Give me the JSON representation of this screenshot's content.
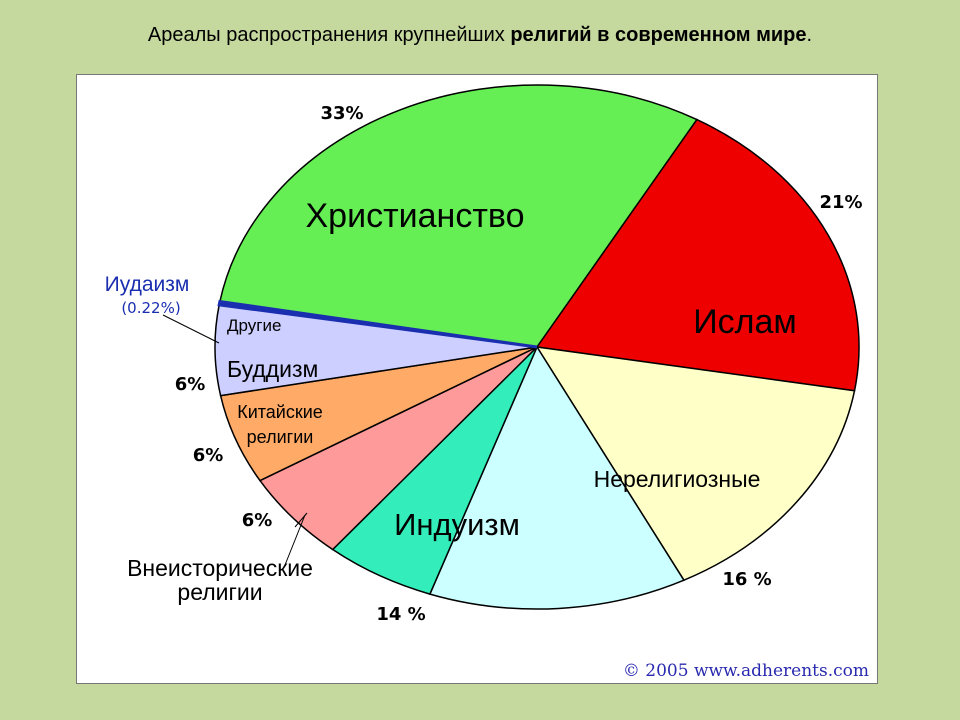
{
  "title": {
    "part1": "Ареалы распространения крупнейших ",
    "part2": "религий в современном мире",
    "part3": "."
  },
  "credit": "© 2005 www.adherents.com",
  "colors": {
    "christianity": "#66ee55",
    "islam": "#ee0000",
    "nonreligious": "#ffffc8",
    "hinduism": "#ccffff",
    "primal": "#33eebb",
    "chinese": "#ff9a9a",
    "buddhism": "#ffaa66",
    "other": "#cccfff",
    "judaism": "#1a2eb0"
  },
  "chart_data": {
    "type": "pie",
    "slices": [
      {
        "key": "christianity",
        "label": "Христианство",
        "value": 33,
        "value_label": "33%"
      },
      {
        "key": "islam",
        "label": "Ислам",
        "value": 21,
        "value_label": "21%"
      },
      {
        "key": "nonreligious",
        "label": "Нерелигиозные",
        "value": 16,
        "value_label": "16 %"
      },
      {
        "key": "hinduism",
        "label": "Индуизм",
        "value": 14,
        "value_label": "14 %"
      },
      {
        "key": "primal",
        "label": "Внеисторические религии",
        "value": 6,
        "value_label": "6%"
      },
      {
        "key": "chinese",
        "label": "Китайские религии",
        "value": 6,
        "value_label": "6%"
      },
      {
        "key": "buddhism",
        "label": "Буддизм",
        "value": 6,
        "value_label": "6%"
      },
      {
        "key": "other",
        "label": "Другие",
        "value": 6,
        "value_label": ""
      },
      {
        "key": "judaism",
        "label": "Иудаизм",
        "value": 0.22,
        "value_label": "(0.22%)"
      }
    ]
  }
}
